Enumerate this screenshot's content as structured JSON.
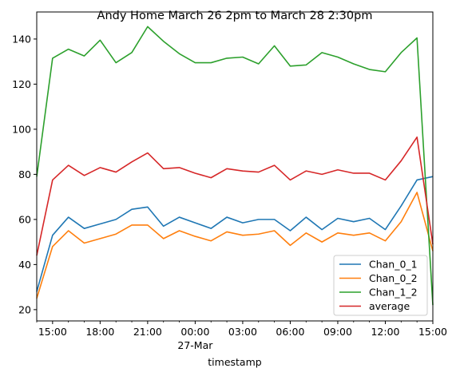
{
  "chart_data": {
    "type": "line",
    "title": "Andy Home March 26 2pm to March 28 2:30pm",
    "xlabel": "timestamp",
    "ylabel": "",
    "x_unit": "hours",
    "xlim": [
      14,
      39
    ],
    "ylim": [
      15,
      152
    ],
    "x_ticks": [
      {
        "x": 15,
        "label": "15:00"
      },
      {
        "x": 18,
        "label": "18:00"
      },
      {
        "x": 21,
        "label": "21:00"
      },
      {
        "x": 24,
        "label": "00:00",
        "sublabel": "27-Mar"
      },
      {
        "x": 27,
        "label": "03:00"
      },
      {
        "x": 30,
        "label": "06:00"
      },
      {
        "x": 33,
        "label": "09:00"
      },
      {
        "x": 36,
        "label": "12:00"
      },
      {
        "x": 39,
        "label": "15:00"
      }
    ],
    "y_ticks": [
      20,
      40,
      60,
      80,
      100,
      120,
      140
    ],
    "grid": false,
    "legend_position": "lower right",
    "x": [
      14,
      15,
      16,
      17,
      18,
      19,
      20,
      21,
      22,
      23,
      24,
      25,
      26,
      27,
      28,
      29,
      30,
      31,
      32,
      33,
      34,
      35,
      36,
      37,
      38,
      39
    ],
    "series": [
      {
        "name": "Chan_0_1",
        "color": "#1f77b4",
        "values": [
          28,
          53,
          61,
          56,
          58,
          60,
          64.5,
          65.5,
          57,
          61,
          58.5,
          56,
          61,
          58.5,
          60,
          60,
          55,
          61,
          55.5,
          60.5,
          59,
          60.5,
          55.5,
          66,
          77.5,
          79
        ]
      },
      {
        "name": "Chan_0_2",
        "color": "#ff7f0e",
        "values": [
          25,
          48,
          55,
          49.5,
          51.5,
          53.5,
          57.5,
          57.5,
          51.5,
          55,
          52.5,
          50.5,
          54.5,
          53,
          53.5,
          55,
          48.5,
          54,
          50,
          54,
          53,
          54,
          50.5,
          59,
          72,
          46
        ]
      },
      {
        "name": "Chan_1_2",
        "color": "#2ca02c",
        "values": [
          79,
          131.5,
          135.5,
          132.5,
          139.5,
          129.5,
          134,
          145.5,
          139,
          133.5,
          129.5,
          129.5,
          131.5,
          132,
          129,
          137,
          128,
          128.5,
          134,
          132,
          129,
          126.5,
          125.5,
          134,
          140.5,
          22
        ]
      },
      {
        "name": "average",
        "color": "#d62728",
        "values": [
          44,
          77.5,
          84,
          79.5,
          83,
          81,
          85.5,
          89.5,
          82.5,
          83,
          80.5,
          78.5,
          82.5,
          81.5,
          81,
          84,
          77.5,
          81.5,
          80,
          82,
          80.5,
          80.5,
          77.5,
          86,
          96.5,
          49
        ]
      }
    ]
  }
}
